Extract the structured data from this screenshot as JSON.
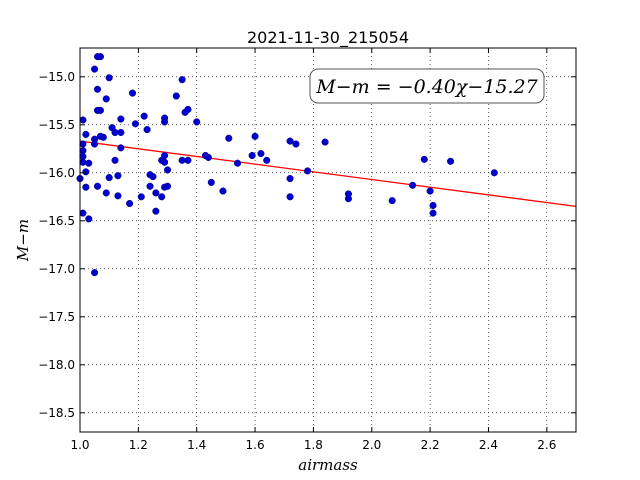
{
  "chart_data": {
    "type": "scatter",
    "title": "2021-11-30_215054",
    "xlabel": "airmass",
    "ylabel": "M−m",
    "xlim": [
      1.0,
      2.7
    ],
    "ylim": [
      -18.7,
      -14.7
    ],
    "y_inverted": true,
    "grid": true,
    "x_ticks": [
      1.0,
      1.2,
      1.4,
      1.6,
      1.8,
      2.0,
      2.2,
      2.4,
      2.6
    ],
    "x_tick_labels": [
      "1.0",
      "1.2",
      "1.4",
      "1.6",
      "1.8",
      "2.0",
      "2.2",
      "2.4",
      "2.6"
    ],
    "y_ticks": [
      -15.0,
      -15.5,
      -16.0,
      -16.5,
      -17.0,
      -17.5,
      -18.0,
      -18.5
    ],
    "y_tick_labels": [
      "−15.0",
      "−15.5",
      "−16.0",
      "−16.5",
      "−17.0",
      "−17.5",
      "−18.0",
      "−18.5"
    ],
    "annotation": "M−m = −0.40χ−15.27",
    "point_color": "#0000cc",
    "fit_color": "#ff0000",
    "fit_line": {
      "slope": -0.4,
      "intercept": -15.27,
      "x": [
        1.0,
        2.7
      ]
    },
    "points": [
      [
        1.0,
        -16.06
      ],
      [
        1.01,
        -16.42
      ],
      [
        1.01,
        -15.45
      ],
      [
        1.01,
        -15.7
      ],
      [
        1.01,
        -15.77
      ],
      [
        1.01,
        -15.83
      ],
      [
        1.01,
        -15.89
      ],
      [
        1.02,
        -15.6
      ],
      [
        1.02,
        -15.99
      ],
      [
        1.02,
        -16.15
      ],
      [
        1.03,
        -15.9
      ],
      [
        1.03,
        -16.48
      ],
      [
        1.05,
        -14.92
      ],
      [
        1.05,
        -15.65
      ],
      [
        1.05,
        -15.7
      ],
      [
        1.05,
        -17.04
      ],
      [
        1.06,
        -14.79
      ],
      [
        1.06,
        -15.13
      ],
      [
        1.06,
        -15.35
      ],
      [
        1.06,
        -16.14
      ],
      [
        1.07,
        -14.79
      ],
      [
        1.07,
        -15.35
      ],
      [
        1.07,
        -15.62
      ],
      [
        1.08,
        -15.63
      ],
      [
        1.09,
        -15.23
      ],
      [
        1.09,
        -16.21
      ],
      [
        1.1,
        -16.05
      ],
      [
        1.1,
        -15.01
      ],
      [
        1.11,
        -15.53
      ],
      [
        1.12,
        -15.58
      ],
      [
        1.12,
        -15.87
      ],
      [
        1.13,
        -16.03
      ],
      [
        1.13,
        -16.24
      ],
      [
        1.14,
        -15.44
      ],
      [
        1.14,
        -15.58
      ],
      [
        1.14,
        -15.74
      ],
      [
        1.17,
        -16.32
      ],
      [
        1.18,
        -15.17
      ],
      [
        1.19,
        -15.49
      ],
      [
        1.21,
        -16.25
      ],
      [
        1.22,
        -15.41
      ],
      [
        1.23,
        -15.55
      ],
      [
        1.24,
        -16.02
      ],
      [
        1.24,
        -16.14
      ],
      [
        1.25,
        -16.04
      ],
      [
        1.26,
        -16.21
      ],
      [
        1.26,
        -16.4
      ],
      [
        1.28,
        -16.25
      ],
      [
        1.28,
        -15.87
      ],
      [
        1.29,
        -16.15
      ],
      [
        1.29,
        -15.89
      ],
      [
        1.29,
        -15.82
      ],
      [
        1.29,
        -15.43
      ],
      [
        1.29,
        -15.47
      ],
      [
        1.3,
        -15.97
      ],
      [
        1.3,
        -16.14
      ],
      [
        1.33,
        -15.2
      ],
      [
        1.35,
        -15.03
      ],
      [
        1.35,
        -15.87
      ],
      [
        1.36,
        -15.37
      ],
      [
        1.37,
        -15.34
      ],
      [
        1.37,
        -15.87
      ],
      [
        1.4,
        -15.47
      ],
      [
        1.43,
        -15.82
      ],
      [
        1.44,
        -15.84
      ],
      [
        1.45,
        -16.1
      ],
      [
        1.49,
        -16.19
      ],
      [
        1.51,
        -15.64
      ],
      [
        1.54,
        -15.9
      ],
      [
        1.59,
        -15.82
      ],
      [
        1.6,
        -15.62
      ],
      [
        1.62,
        -15.8
      ],
      [
        1.64,
        -15.87
      ],
      [
        1.72,
        -15.67
      ],
      [
        1.72,
        -16.06
      ],
      [
        1.72,
        -16.25
      ],
      [
        1.74,
        -15.7
      ],
      [
        1.78,
        -15.98
      ],
      [
        1.84,
        -15.68
      ],
      [
        1.92,
        -16.22
      ],
      [
        1.92,
        -16.27
      ],
      [
        2.07,
        -16.29
      ],
      [
        2.14,
        -16.13
      ],
      [
        2.18,
        -15.86
      ],
      [
        2.2,
        -16.19
      ],
      [
        2.21,
        -16.34
      ],
      [
        2.21,
        -16.42
      ],
      [
        2.27,
        -15.88
      ],
      [
        2.42,
        -16.0
      ]
    ]
  }
}
